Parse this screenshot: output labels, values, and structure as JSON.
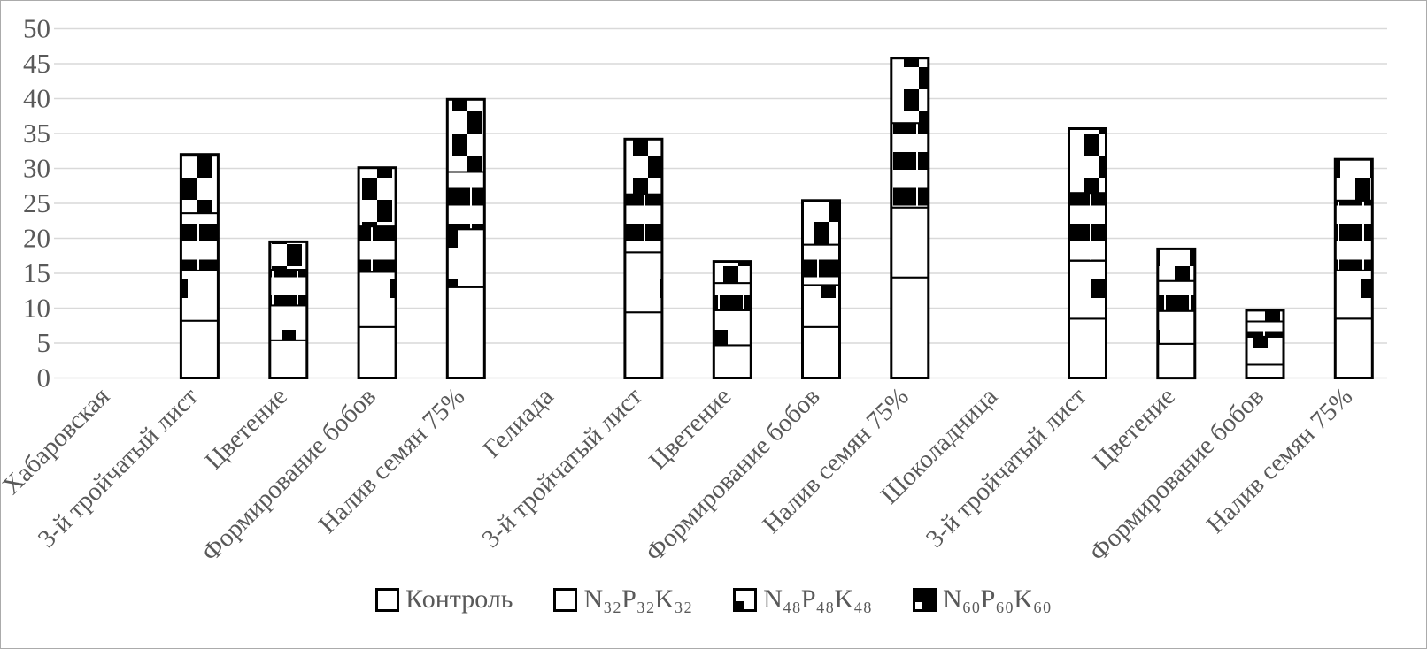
{
  "chart_data": {
    "type": "bar",
    "stacked": true,
    "title": "",
    "xlabel": "",
    "ylabel": "",
    "ylim": [
      0,
      50
    ],
    "ytick_step": 5,
    "y_tick_labels": [
      "0",
      "5",
      "10",
      "15",
      "20",
      "25",
      "30",
      "35",
      "40",
      "45",
      "50"
    ],
    "grid": true,
    "legend_position": "bottom",
    "categories": [
      "Хабаровская",
      "3-й тройчатый лист",
      "Цветение",
      "Формирование бобов",
      "Налив семян 75%",
      "Гелиада",
      "3-й тройчатый лист",
      "Цветение",
      "Формирование бобов",
      "Налив семян 75%",
      "Шоколадница",
      "3-й тройчатый лист",
      "Цветение",
      "Формирование бобов",
      "Налив семян 75%"
    ],
    "series": [
      {
        "name": "Контроль",
        "pattern": "solid-white",
        "values": [
          0,
          8.2,
          5.4,
          7.3,
          13.0,
          0,
          9.4,
          4.7,
          7.3,
          14.4,
          0,
          8.5,
          4.9,
          1.9,
          8.5
        ]
      },
      {
        "name": "N₃₂P₃₂K₃₂",
        "pattern": "sparse-square",
        "values": [
          0,
          7.2,
          5.0,
          7.9,
          8.3,
          0,
          8.6,
          5.0,
          6.0,
          10.0,
          0,
          8.3,
          4.7,
          4.0,
          6.9
        ]
      },
      {
        "name": "N₄₈P₄₈K₄₈",
        "pattern": "dash-rows",
        "values": [
          0,
          8.2,
          5.1,
          6.5,
          8.2,
          0,
          8.3,
          3.9,
          5.8,
          12.1,
          0,
          9.7,
          4.3,
          2.2,
          10.0
        ]
      },
      {
        "name": "N₆₀P₆₀K₆₀",
        "pattern": "checkerboard",
        "values": [
          0,
          8.4,
          4.0,
          8.4,
          10.4,
          0,
          7.9,
          3.1,
          6.3,
          9.3,
          0,
          9.2,
          4.6,
          1.6,
          5.9
        ]
      }
    ],
    "bar_totals": [
      0,
      32.0,
      19.5,
      30.1,
      39.9,
      0,
      34.2,
      16.7,
      25.4,
      45.8,
      0,
      35.7,
      18.5,
      9.7,
      31.3
    ]
  },
  "legend": {
    "items": [
      {
        "label": "Контроль",
        "swatch": "solid-white"
      },
      {
        "label": "N₃₂P₃₂K₃₂",
        "swatch": "solid-white"
      },
      {
        "label": "N₄₈P₄₈K₄₈",
        "swatch": "black-corner"
      },
      {
        "label": "N₆₀P₆₀K₆₀",
        "swatch": "mostly-black"
      }
    ]
  },
  "colors": {
    "axis_text": "#595959",
    "gridline": "#d9d9d9",
    "bar_fill": "#ffffff",
    "bar_pattern": "#000000",
    "frame_border": "#ababab"
  }
}
